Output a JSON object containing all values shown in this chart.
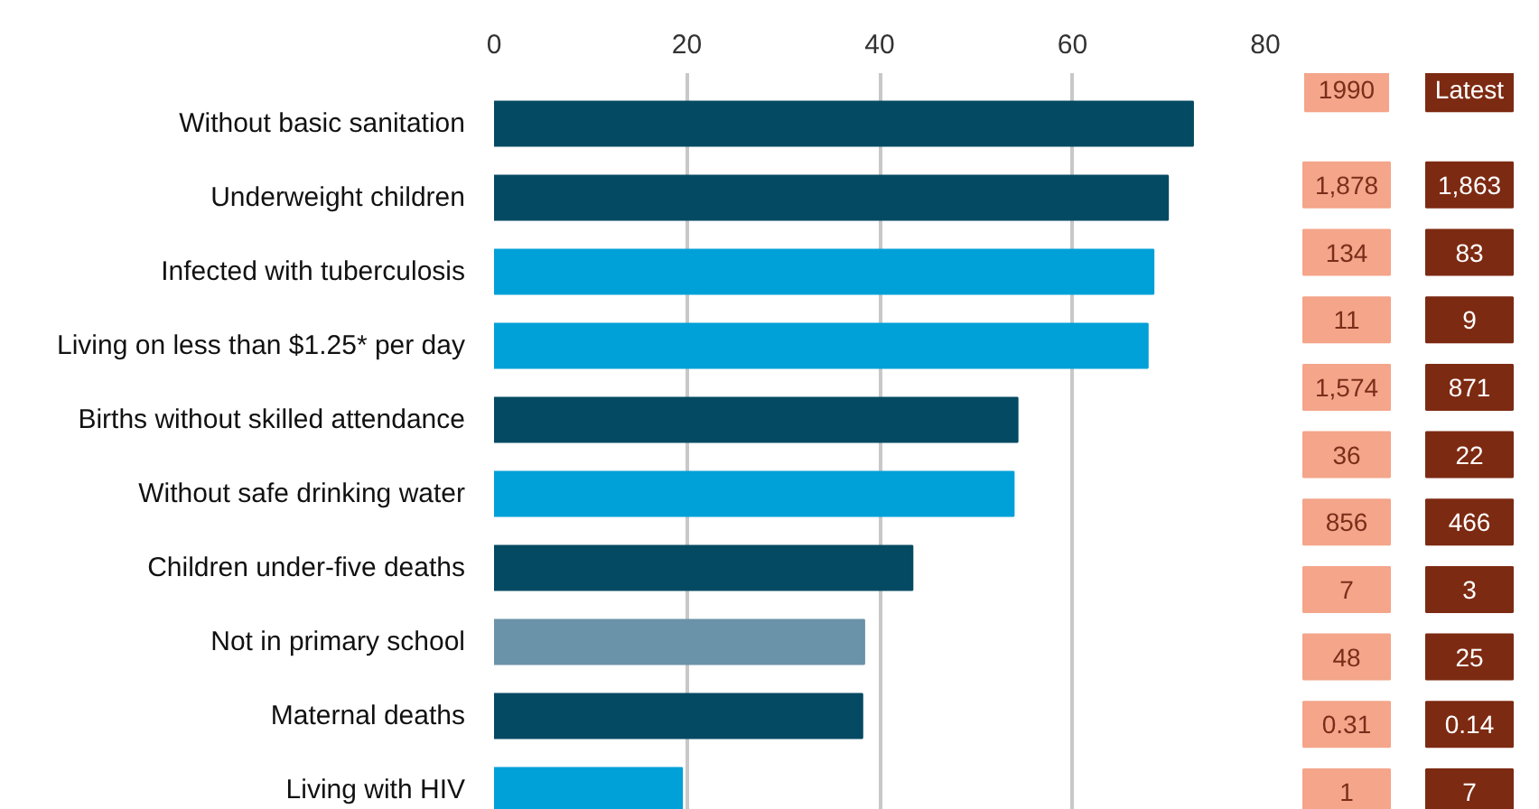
{
  "chart_data": [
    {
      "type": "bar",
      "orientation": "horizontal",
      "categories": [
        "Without basic sanitation",
        "Underweight children",
        "Infected with tuberculosis",
        "Living on less than $1.25* per day",
        "Births without skilled attendance",
        "Without safe drinking water",
        "Children under-five deaths",
        "Not in primary school",
        "Maternal deaths",
        "Living with HIV"
      ],
      "values": [
        72.5,
        69.9,
        68.4,
        67.8,
        54.3,
        53.9,
        43.4,
        38.4,
        38.2,
        19.5
      ],
      "colors": [
        "#054a63",
        "#054a63",
        "#00a0d8",
        "#00a0d8",
        "#054a63",
        "#00a0d8",
        "#054a63",
        "#6a92a8",
        "#054a63",
        "#00a0d8"
      ],
      "xlim": [
        0,
        80
      ],
      "xticks": [
        0,
        20,
        40,
        60,
        80
      ],
      "grid": "x"
    },
    {
      "type": "other",
      "categories": [
        "1990",
        "Latest"
      ],
      "cell_labels": [
        [
          "1,878",
          "1,863"
        ],
        [
          "134",
          "83"
        ],
        [
          "11",
          "9"
        ],
        [
          "1,574",
          "871"
        ],
        [
          "36",
          "22"
        ],
        [
          "856",
          "466"
        ],
        [
          "7",
          "3"
        ],
        [
          "48",
          "25"
        ],
        [
          "0.31",
          "0.14"
        ],
        [
          "1",
          "7"
        ]
      ],
      "colors": [
        "#f4a58a",
        "#7d2a12"
      ]
    }
  ]
}
